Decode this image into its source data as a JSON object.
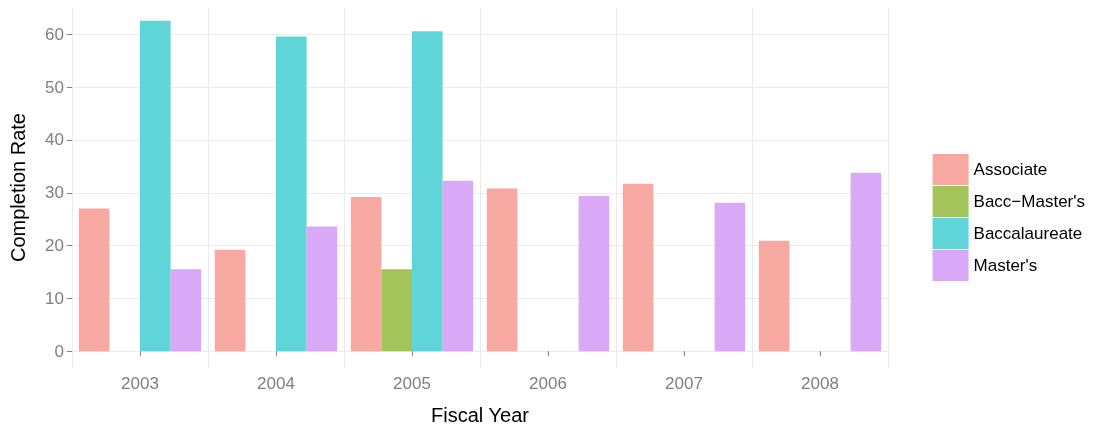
{
  "chart_data": {
    "type": "bar",
    "xlabel": "Fiscal Year",
    "ylabel": "Completion Rate",
    "categories": [
      "2003",
      "2004",
      "2005",
      "2006",
      "2007",
      "2008"
    ],
    "series": [
      {
        "name": "Associate",
        "color": "#f7a8a0",
        "values": [
          27.0,
          19.2,
          29.2,
          30.8,
          31.7,
          20.9
        ]
      },
      {
        "name": "Bacc−Master's",
        "color": "#a3c45a",
        "values": [
          null,
          null,
          15.5,
          null,
          null,
          null
        ]
      },
      {
        "name": "Baccalaureate",
        "color": "#5fd5d9",
        "values": [
          62.6,
          59.6,
          60.6,
          null,
          null,
          null
        ]
      },
      {
        "name": "Master's",
        "color": "#d9a9f7",
        "values": [
          15.5,
          23.6,
          32.3,
          29.4,
          28.1,
          33.8
        ]
      }
    ],
    "ylim": [
      -3,
      65
    ],
    "yticks": [
      0,
      10,
      20,
      30,
      40,
      50,
      60
    ],
    "grid": true,
    "legend": "right"
  }
}
